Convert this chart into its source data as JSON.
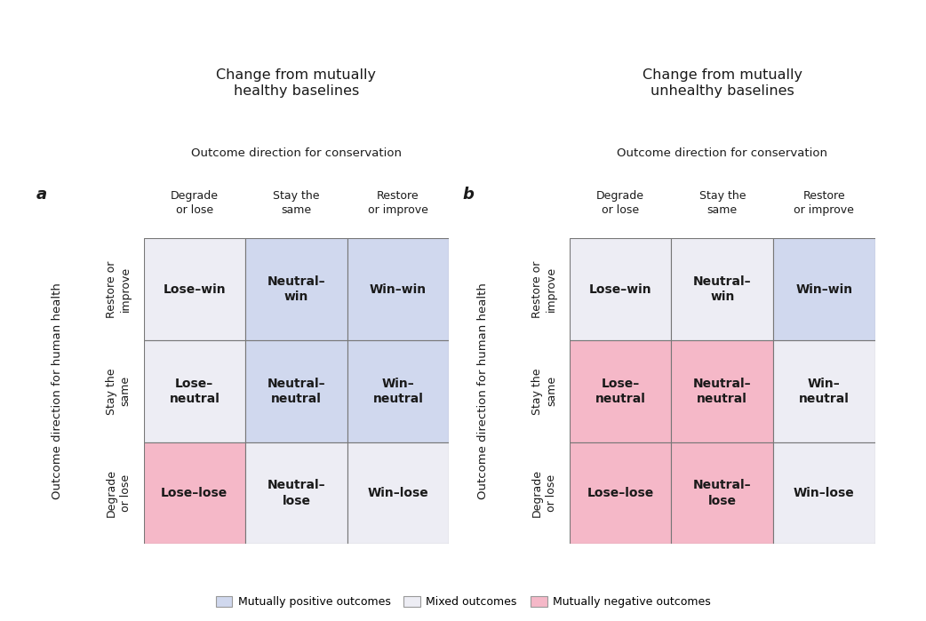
{
  "panel_a_title": "Change from mutually\nhealthy baselines",
  "panel_b_title": "Change from mutually\nunhealthy baselines",
  "conservation_label": "Outcome direction for conservation",
  "health_label": "Outcome direction for human health",
  "col_labels": [
    "Degrade\nor lose",
    "Stay the\nsame",
    "Restore\nor improve"
  ],
  "row_labels": [
    "Restore or\nimprove",
    "Stay the\nsame",
    "Degrade\nor lose"
  ],
  "cell_labels_a": [
    [
      "Lose–win",
      "Neutral–\nwin",
      "Win–win"
    ],
    [
      "Lose–\nneutral",
      "Neutral–\nneutral",
      "Win–\nneutral"
    ],
    [
      "Lose–lose",
      "Neutral–\nlose",
      "Win–lose"
    ]
  ],
  "cell_labels_b": [
    [
      "Lose–win",
      "Neutral–\nwin",
      "Win–win"
    ],
    [
      "Lose–\nneutral",
      "Neutral–\nneutral",
      "Win–\nneutral"
    ],
    [
      "Lose–lose",
      "Neutral–\nlose",
      "Win–lose"
    ]
  ],
  "cell_colors_a": [
    [
      "#ededf4",
      "#d0d8ee",
      "#d0d8ee"
    ],
    [
      "#ededf4",
      "#d0d8ee",
      "#d0d8ee"
    ],
    [
      "#f5b8c8",
      "#ededf4",
      "#ededf4"
    ]
  ],
  "cell_colors_b": [
    [
      "#ededf4",
      "#ededf4",
      "#d0d8ee"
    ],
    [
      "#f5b8c8",
      "#f5b8c8",
      "#ededf4"
    ],
    [
      "#f5b8c8",
      "#f5b8c8",
      "#ededf4"
    ]
  ],
  "color_positive": "#d0d8ee",
  "color_mixed": "#ededf4",
  "color_negative": "#f5b8c8",
  "legend_labels": [
    "Mutually positive outcomes",
    "Mixed outcomes",
    "Mutually negative outcomes"
  ],
  "bg_color": "#ffffff",
  "text_color": "#1a1a1a",
  "grid_color": "#777777",
  "label_fontsize": 9.0,
  "cell_fontsize": 10.0,
  "title_fontsize": 11.5,
  "panel_label_fontsize": 13,
  "row_label_fontsize": 9.0,
  "col_label_fontsize": 9.0
}
